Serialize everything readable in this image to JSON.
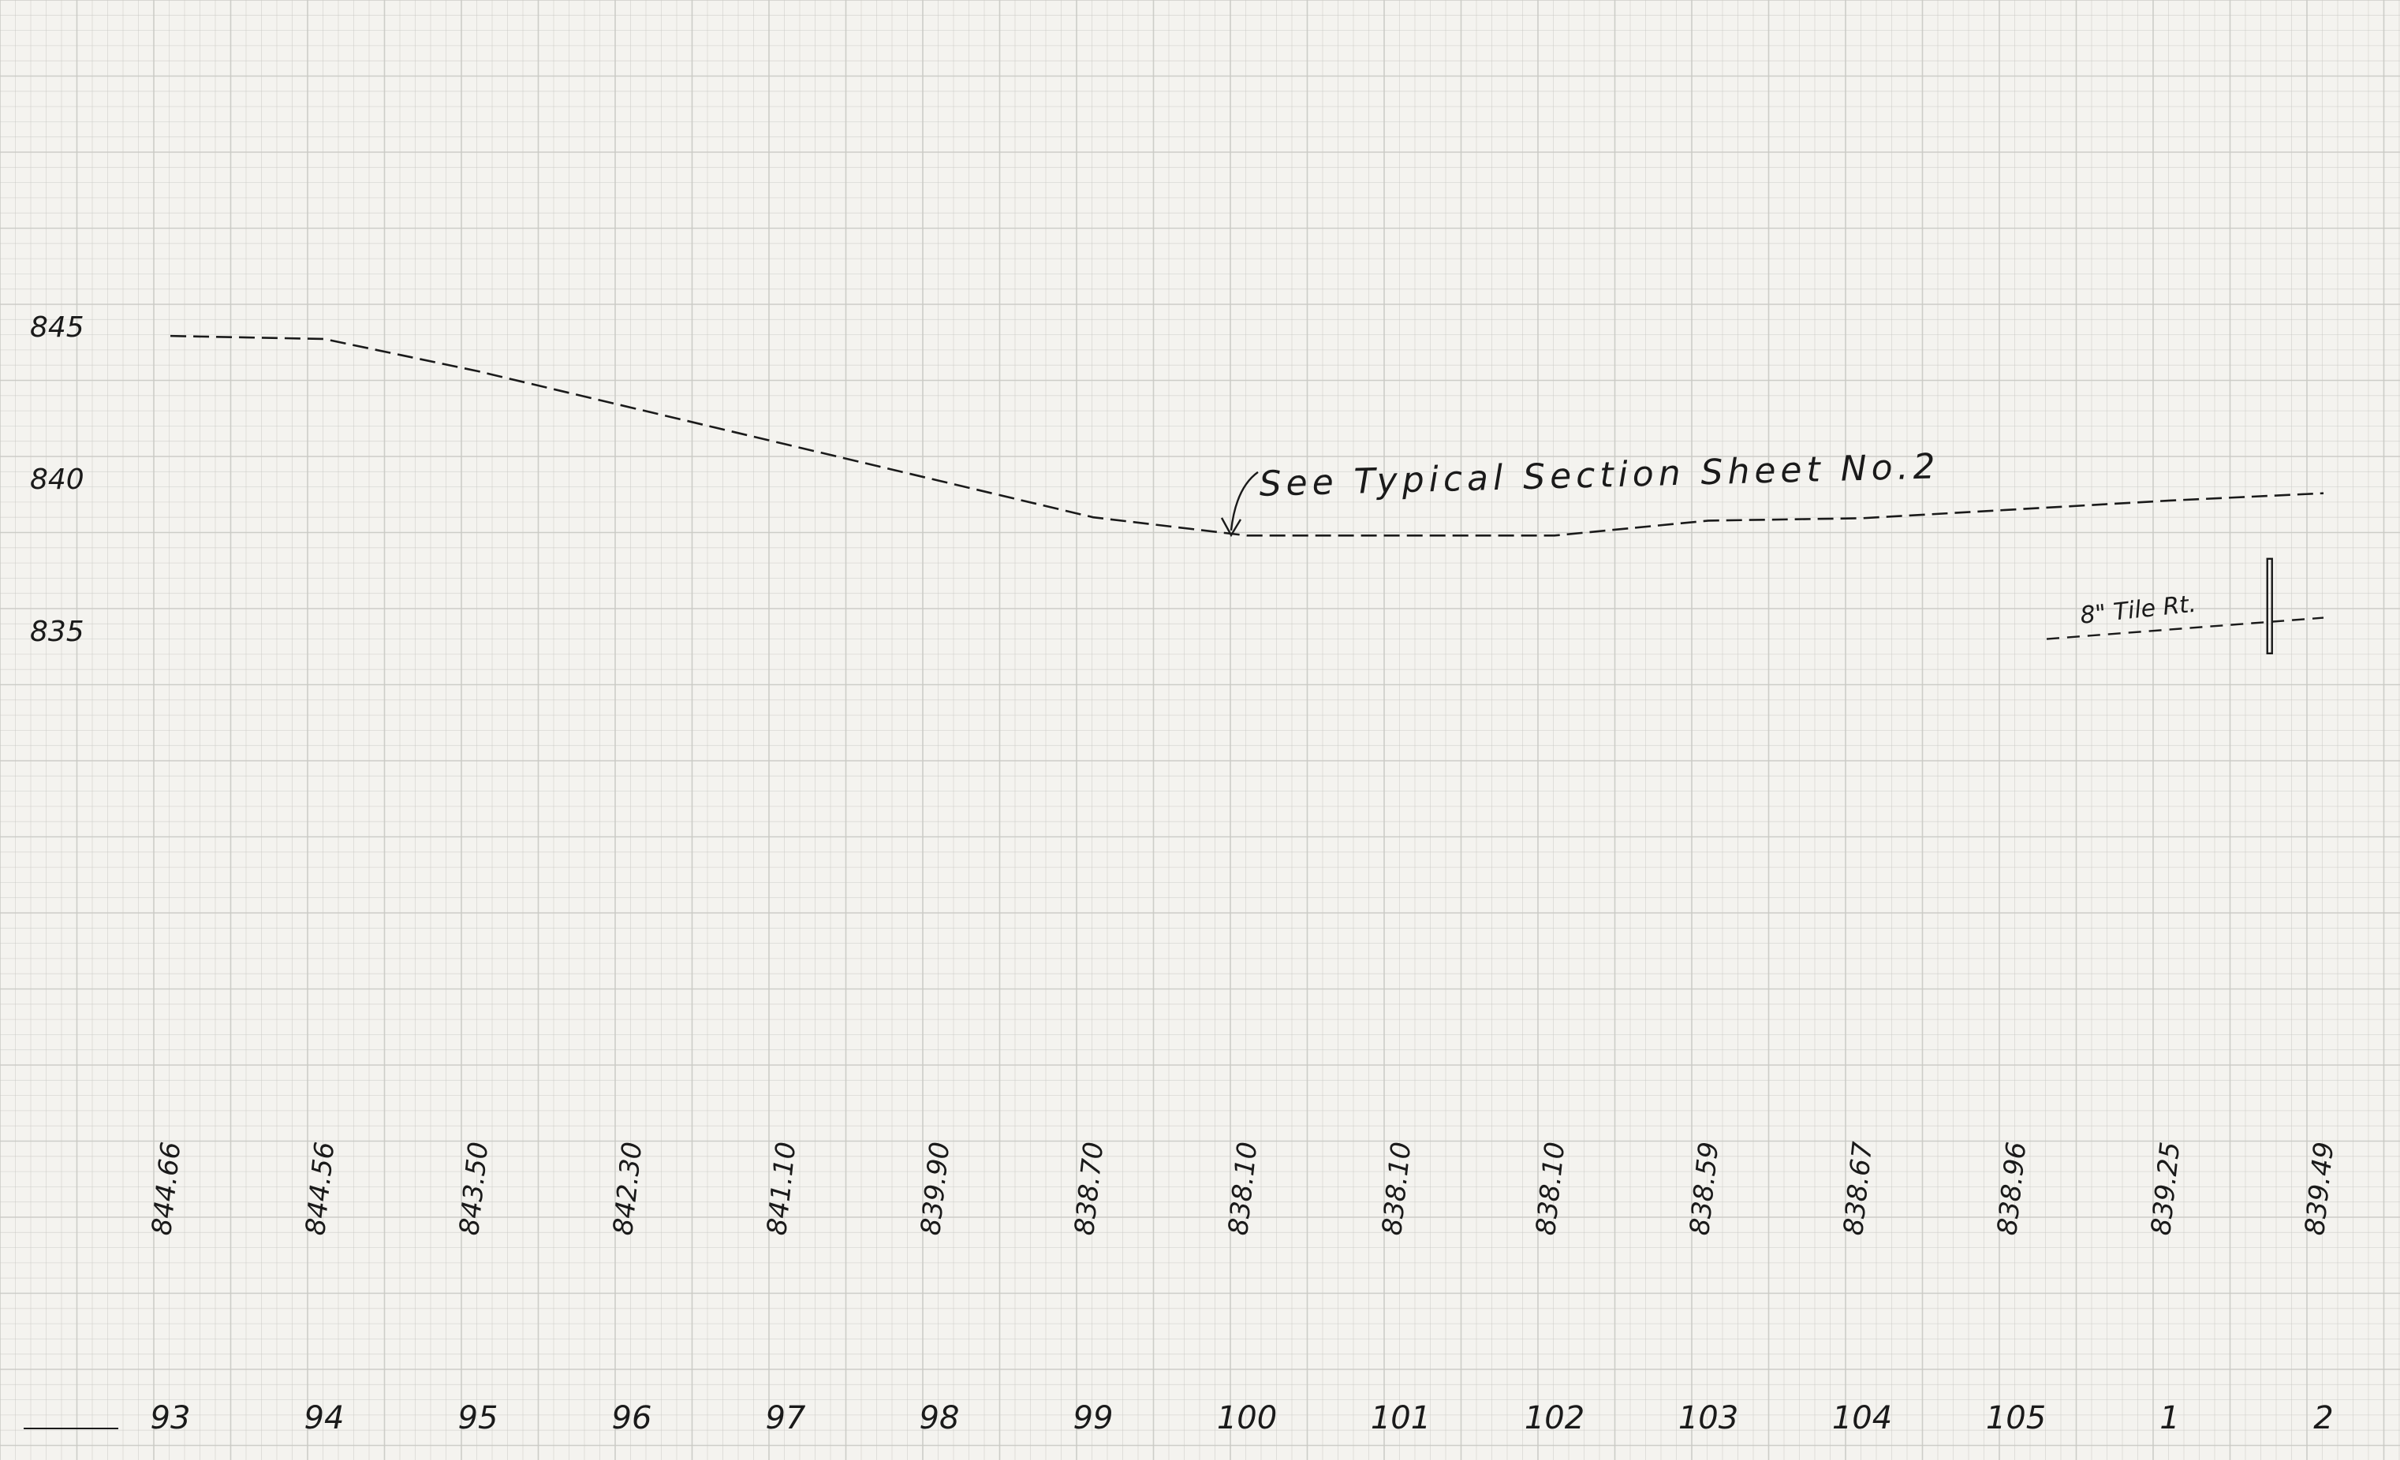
{
  "chart_data": {
    "type": "line",
    "style": "dashed profile line on engineering grid paper",
    "grid": true,
    "y_ticks": [
      {
        "value": 845,
        "label": "845"
      },
      {
        "value": 840,
        "label": "840"
      },
      {
        "value": 835,
        "label": "835"
      }
    ],
    "ylim": [
      820,
      852
    ],
    "stations": [
      "93",
      "94",
      "95",
      "96",
      "97",
      "98",
      "99",
      "100",
      "101",
      "102",
      "103",
      "104",
      "105",
      "1",
      "2"
    ],
    "elevation_labels": [
      "844.66",
      "844.56",
      "843.50",
      "842.30",
      "841.10",
      "839.90",
      "838.70",
      "838.10",
      "838.10",
      "838.10",
      "838.59",
      "838.67",
      "838.96",
      "839.25",
      "839.49"
    ],
    "series": [
      {
        "values": [
          844.66,
          844.56,
          843.5,
          842.3,
          841.1,
          839.9,
          838.7,
          838.1,
          838.1,
          838.1,
          838.59,
          838.67,
          838.96,
          839.25,
          839.49
        ]
      }
    ],
    "tile_line": {
      "label": "8\" Tile Rt.",
      "x_from": 12.2,
      "x_to": 14,
      "y_from": 834.7,
      "y_to": 835.4,
      "marker_x": 13.65
    },
    "annotations": [
      {
        "text": "See Typical Section Sheet No.2",
        "x": 7,
        "y": 839.2
      }
    ],
    "colors": {
      "ink": "#1a1a1a",
      "grid": "#c9c9c4",
      "paper": "#f4f3ef"
    }
  }
}
